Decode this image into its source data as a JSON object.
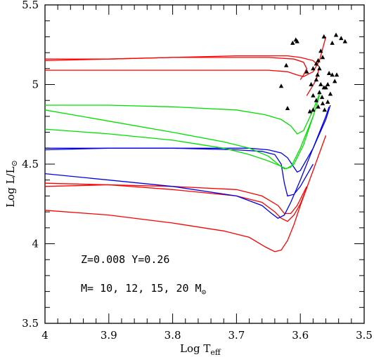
{
  "chart_data": {
    "type": "line",
    "title": "",
    "xlabel": {
      "main": "Log T",
      "sub": "eff"
    },
    "ylabel": {
      "main": "Log L/L",
      "sub": "⊙"
    },
    "xlim": [
      4.0,
      3.5
    ],
    "ylim": [
      3.5,
      5.5
    ],
    "x_ticks": [
      4,
      3.9,
      3.8,
      3.7,
      3.6,
      3.5
    ],
    "x_tick_labels": [
      "4",
      "3.9",
      "3.8",
      "3.7",
      "3.6",
      "3.5"
    ],
    "y_ticks": [
      3.5,
      4,
      4.5,
      5,
      5.5
    ],
    "y_tick_labels": [
      "3.5",
      "4",
      "4.5",
      "5",
      "5.5"
    ],
    "grid": false,
    "annotations": [
      {
        "text": "Z=0.008 Y=0.26"
      },
      {
        "text": "M= 10, 12, 15, 20 M",
        "sub": "⊙"
      }
    ],
    "colors": {
      "red": "#ff0000",
      "green": "#00e000",
      "blue": "#0000ee",
      "points": "#000000"
    },
    "series": [
      {
        "color": "red",
        "points": [
          [
            4.0,
            4.21
          ],
          [
            3.9,
            4.18
          ],
          [
            3.8,
            4.13
          ],
          [
            3.72,
            4.08
          ],
          [
            3.68,
            4.04
          ],
          [
            3.655,
            3.98
          ],
          [
            3.64,
            3.95
          ],
          [
            3.63,
            3.96
          ],
          [
            3.62,
            4.02
          ],
          [
            3.61,
            4.12
          ],
          [
            3.6,
            4.24
          ],
          [
            3.58,
            4.46
          ],
          [
            3.56,
            4.68
          ]
        ]
      },
      {
        "color": "red",
        "points": [
          [
            4.0,
            4.38
          ],
          [
            3.9,
            4.37
          ],
          [
            3.8,
            4.34
          ],
          [
            3.7,
            4.3
          ],
          [
            3.66,
            4.26
          ],
          [
            3.64,
            4.2
          ],
          [
            3.63,
            4.16
          ],
          [
            3.62,
            4.14
          ],
          [
            3.61,
            4.18
          ],
          [
            3.6,
            4.25
          ],
          [
            3.59,
            4.35
          ]
        ]
      },
      {
        "color": "red",
        "points": [
          [
            4.0,
            4.36
          ],
          [
            3.9,
            4.37
          ],
          [
            3.8,
            4.36
          ],
          [
            3.7,
            4.34
          ],
          [
            3.66,
            4.3
          ],
          [
            3.635,
            4.24
          ],
          [
            3.625,
            4.19
          ],
          [
            3.615,
            4.19
          ],
          [
            3.605,
            4.24
          ],
          [
            3.59,
            4.36
          ]
        ]
      },
      {
        "color": "blue",
        "points": [
          [
            4.0,
            4.6
          ],
          [
            3.9,
            4.6
          ],
          [
            3.8,
            4.6
          ],
          [
            3.7,
            4.59
          ],
          [
            3.66,
            4.58
          ],
          [
            3.64,
            4.56
          ],
          [
            3.63,
            4.5
          ],
          [
            3.625,
            4.38
          ],
          [
            3.62,
            4.3
          ],
          [
            3.61,
            4.31
          ],
          [
            3.6,
            4.36
          ],
          [
            3.58,
            4.5
          ]
        ]
      },
      {
        "color": "blue",
        "points": [
          [
            4.0,
            4.44
          ],
          [
            3.9,
            4.4
          ],
          [
            3.8,
            4.36
          ],
          [
            3.7,
            4.3
          ],
          [
            3.66,
            4.24
          ],
          [
            3.645,
            4.19
          ],
          [
            3.635,
            4.16
          ],
          [
            3.625,
            4.18
          ],
          [
            3.615,
            4.26
          ],
          [
            3.6,
            4.4
          ],
          [
            3.58,
            4.6
          ],
          [
            3.56,
            4.78
          ],
          [
            3.553,
            4.87
          ]
        ]
      },
      {
        "color": "blue",
        "points": [
          [
            4.0,
            4.59
          ],
          [
            3.9,
            4.6
          ],
          [
            3.8,
            4.6
          ],
          [
            3.72,
            4.6
          ],
          [
            3.68,
            4.6
          ],
          [
            3.65,
            4.59
          ],
          [
            3.63,
            4.57
          ],
          [
            3.62,
            4.54
          ],
          [
            3.61,
            4.48
          ],
          [
            3.605,
            4.45
          ],
          [
            3.6,
            4.46
          ],
          [
            3.58,
            4.6
          ],
          [
            3.56,
            4.8
          ],
          [
            3.555,
            4.86
          ]
        ]
      },
      {
        "color": "green",
        "points": [
          [
            4.0,
            4.87
          ],
          [
            3.9,
            4.87
          ],
          [
            3.8,
            4.86
          ],
          [
            3.7,
            4.84
          ],
          [
            3.655,
            4.81
          ],
          [
            3.63,
            4.78
          ],
          [
            3.615,
            4.74
          ],
          [
            3.605,
            4.69
          ],
          [
            3.595,
            4.71
          ],
          [
            3.58,
            4.84
          ],
          [
            3.57,
            4.94
          ]
        ]
      },
      {
        "color": "green",
        "points": [
          [
            4.0,
            4.84
          ],
          [
            3.9,
            4.77
          ],
          [
            3.8,
            4.7
          ],
          [
            3.72,
            4.64
          ],
          [
            3.68,
            4.6
          ],
          [
            3.65,
            4.55
          ],
          [
            3.635,
            4.5
          ],
          [
            3.625,
            4.47
          ],
          [
            3.615,
            4.48
          ],
          [
            3.6,
            4.6
          ],
          [
            3.58,
            4.8
          ],
          [
            3.57,
            4.93
          ]
        ]
      },
      {
        "color": "green",
        "points": [
          [
            4.0,
            4.72
          ],
          [
            3.9,
            4.69
          ],
          [
            3.8,
            4.65
          ],
          [
            3.72,
            4.6
          ],
          [
            3.68,
            4.56
          ],
          [
            3.65,
            4.52
          ],
          [
            3.632,
            4.49
          ],
          [
            3.622,
            4.47
          ],
          [
            3.61,
            4.5
          ],
          [
            3.595,
            4.62
          ],
          [
            3.58,
            4.8
          ]
        ]
      },
      {
        "color": "red",
        "points": [
          [
            4.0,
            5.16
          ],
          [
            3.9,
            5.16
          ],
          [
            3.8,
            5.17
          ],
          [
            3.7,
            5.17
          ],
          [
            3.65,
            5.17
          ],
          [
            3.61,
            5.16
          ],
          [
            3.595,
            5.14
          ],
          [
            3.59,
            5.1
          ],
          [
            3.595,
            5.06
          ],
          [
            3.6,
            5.03
          ]
        ]
      },
      {
        "color": "red",
        "points": [
          [
            4.0,
            5.15
          ],
          [
            3.9,
            5.16
          ],
          [
            3.8,
            5.17
          ],
          [
            3.7,
            5.18
          ],
          [
            3.62,
            5.18
          ],
          [
            3.6,
            5.17
          ],
          [
            3.58,
            5.15
          ],
          [
            3.57,
            5.11
          ],
          [
            3.575,
            5.03
          ],
          [
            3.59,
            4.93
          ]
        ]
      },
      {
        "color": "red",
        "points": [
          [
            4.0,
            5.09
          ],
          [
            3.9,
            5.09
          ],
          [
            3.8,
            5.09
          ],
          [
            3.7,
            5.09
          ],
          [
            3.65,
            5.09
          ],
          [
            3.62,
            5.08
          ],
          [
            3.605,
            5.06
          ],
          [
            3.595,
            5.05
          ],
          [
            3.58,
            5.08
          ],
          [
            3.57,
            5.15
          ],
          [
            3.56,
            5.3
          ]
        ]
      }
    ],
    "observed_points": [
      [
        3.612,
        5.26
      ],
      [
        3.607,
        5.28
      ],
      [
        3.605,
        5.27
      ],
      [
        3.622,
        5.12
      ],
      [
        3.63,
        4.99
      ],
      [
        3.62,
        4.85
      ],
      [
        3.563,
        5.3
      ],
      [
        3.544,
        5.31
      ],
      [
        3.536,
        5.29
      ],
      [
        3.55,
        5.26
      ],
      [
        3.53,
        5.27
      ],
      [
        3.565,
        5.17
      ],
      [
        3.568,
        5.21
      ],
      [
        3.572,
        5.15
      ],
      [
        3.575,
        5.13
      ],
      [
        3.58,
        5.1
      ],
      [
        3.57,
        5.1
      ],
      [
        3.573,
        5.06
      ],
      [
        3.59,
        5.08
      ],
      [
        3.583,
        5.0
      ],
      [
        3.575,
        5.03
      ],
      [
        3.568,
        5.0
      ],
      [
        3.557,
        5.0
      ],
      [
        3.55,
        5.06
      ],
      [
        3.543,
        5.06
      ],
      [
        3.546,
        5.02
      ],
      [
        3.555,
        5.07
      ],
      [
        3.563,
        4.98
      ],
      [
        3.57,
        4.95
      ],
      [
        3.58,
        4.93
      ],
      [
        3.566,
        4.92
      ],
      [
        3.575,
        4.9
      ],
      [
        3.557,
        4.89
      ],
      [
        3.565,
        4.88
      ],
      [
        3.572,
        4.86
      ],
      [
        3.58,
        4.84
      ],
      [
        3.585,
        4.83
      ],
      [
        3.562,
        4.84
      ],
      [
        3.56,
        4.98
      ],
      [
        3.553,
        4.94
      ]
    ]
  }
}
